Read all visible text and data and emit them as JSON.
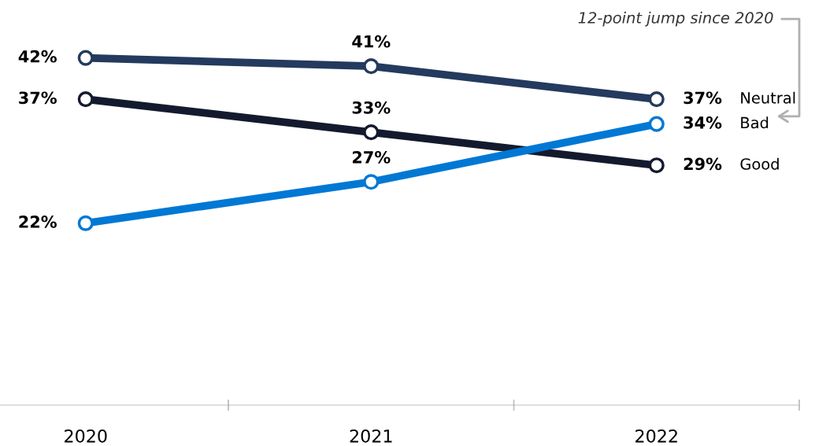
{
  "chart_data": {
    "type": "line",
    "categories": [
      "2020",
      "2021",
      "2022"
    ],
    "series": [
      {
        "name": "Neutral",
        "color": "#243a5e",
        "values": [
          42,
          41,
          37
        ],
        "value_labels": [
          "42%",
          "41%",
          "37%"
        ]
      },
      {
        "name": "Good",
        "color": "#141a2e",
        "values": [
          37,
          33,
          29
        ],
        "value_labels": [
          "37%",
          "33%",
          "29%"
        ]
      },
      {
        "name": "Bad",
        "color": "#0078d4",
        "values": [
          22,
          27,
          34
        ],
        "value_labels": [
          "22%",
          "27%",
          "34%"
        ]
      }
    ],
    "marker": "circle",
    "line_style": "solid",
    "grid": false,
    "legend": false,
    "tick_labels": "x",
    "annotations": [
      "12-point jump since 2020"
    ]
  }
}
